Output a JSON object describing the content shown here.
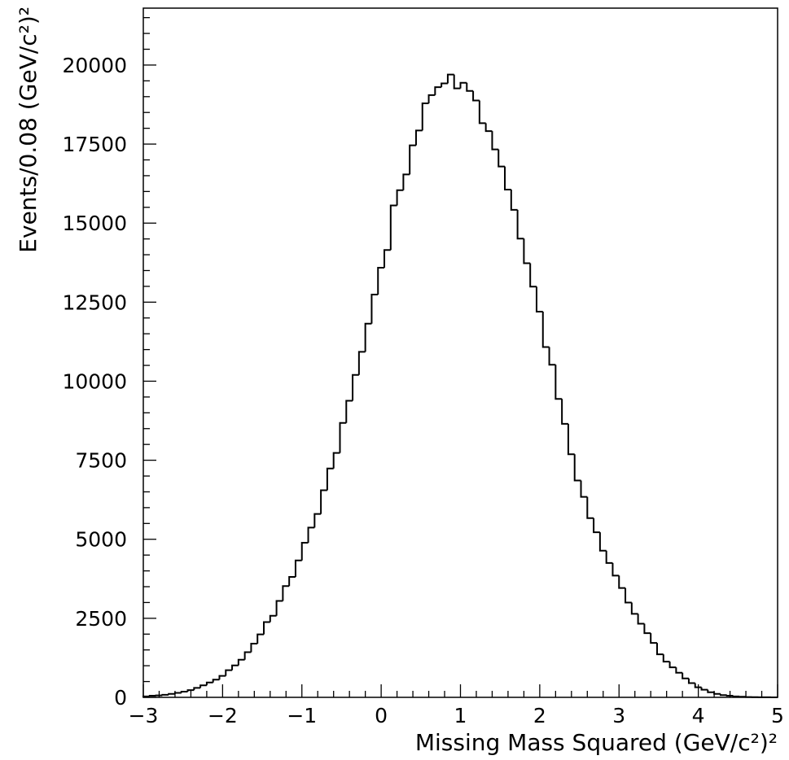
{
  "chart_data": {
    "type": "histogram",
    "title": "",
    "xlabel": "Missing Mass Squared (GeV/c²)²",
    "ylabel": "Events/0.08 (GeV/c²)²",
    "xlim": [
      -3,
      5
    ],
    "ylim": [
      0,
      21800
    ],
    "bin_width": 0.08,
    "x_start": -3.0,
    "x_ticks": [
      "-3",
      "-2",
      "-1",
      "0",
      "1",
      "2",
      "3",
      "4",
      "5"
    ],
    "y_ticks": [
      "0",
      "2500",
      "5000",
      "7500",
      "10000",
      "12500",
      "15000",
      "17500",
      "20000"
    ],
    "grid": false,
    "values": [
      30,
      50,
      60,
      80,
      110,
      140,
      180,
      230,
      300,
      380,
      470,
      560,
      680,
      860,
      1010,
      1190,
      1430,
      1700,
      1990,
      2380,
      2580,
      3050,
      3520,
      3810,
      4330,
      4890,
      5370,
      5800,
      6550,
      7240,
      7730,
      8680,
      9380,
      10200,
      10930,
      11820,
      12740,
      13590,
      14150,
      15560,
      16040,
      16540,
      17460,
      17930,
      18790,
      19050,
      19300,
      19420,
      19700,
      19260,
      19440,
      19180,
      18880,
      18160,
      17910,
      17330,
      16790,
      16060,
      15420,
      14510,
      13730,
      12990,
      12200,
      11080,
      10520,
      9440,
      8650,
      7690,
      6860,
      6340,
      5670,
      5220,
      4640,
      4250,
      3850,
      3460,
      3000,
      2640,
      2330,
      2030,
      1720,
      1360,
      1130,
      950,
      780,
      600,
      450,
      320,
      240,
      160,
      110,
      70,
      50,
      30,
      20,
      10,
      5,
      3,
      2,
      1
    ]
  }
}
